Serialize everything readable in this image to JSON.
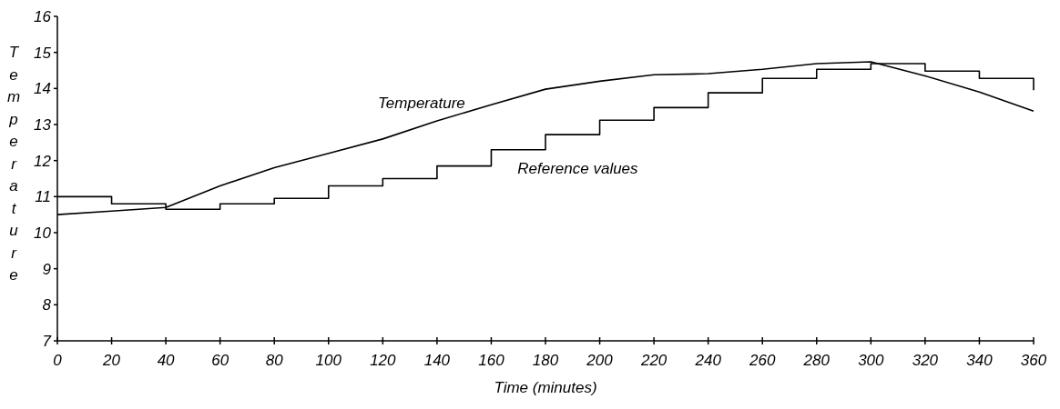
{
  "chart_data": {
    "type": "line",
    "xlabel": "Time (minutes)",
    "ylabel": "Temperature",
    "x": [
      0,
      20,
      40,
      60,
      80,
      100,
      120,
      140,
      160,
      180,
      200,
      220,
      240,
      260,
      280,
      300,
      320,
      340,
      360
    ],
    "series": [
      {
        "name": "Temperature",
        "color": "#000000",
        "values": [
          10.5,
          10.6,
          10.7,
          11.3,
          11.8,
          12.2,
          12.6,
          13.1,
          13.55,
          13.98,
          14.2,
          14.38,
          14.41,
          14.53,
          14.69,
          14.74,
          14.35,
          13.9,
          13.37
        ]
      },
      {
        "name": "Reference values",
        "type": "step",
        "color": "#000000",
        "values": [
          11.0,
          10.8,
          10.65,
          10.8,
          10.95,
          11.3,
          11.5,
          11.85,
          12.3,
          12.72,
          13.12,
          13.47,
          13.88,
          14.28,
          14.53,
          14.69,
          14.48,
          14.28,
          13.95
        ]
      }
    ],
    "xlim": [
      0,
      360
    ],
    "xticks": [
      0,
      20,
      40,
      60,
      80,
      100,
      120,
      140,
      160,
      180,
      200,
      220,
      240,
      260,
      280,
      300,
      320,
      340,
      360
    ],
    "ylim": [
      7,
      16
    ],
    "yticks": [
      7,
      8,
      9,
      10,
      11,
      12,
      13,
      14,
      15,
      16
    ]
  }
}
